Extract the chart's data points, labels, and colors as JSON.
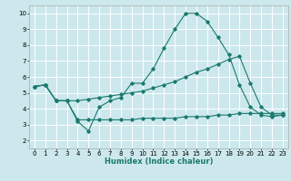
{
  "title": "",
  "xlabel": "Humidex (Indice chaleur)",
  "bg_color": "#cce8ec",
  "grid_color": "#ffffff",
  "line_color": "#1a7a6e",
  "xlim": [
    -0.5,
    23.5
  ],
  "ylim": [
    1.5,
    10.5
  ],
  "xticks": [
    0,
    1,
    2,
    3,
    4,
    5,
    6,
    7,
    8,
    9,
    10,
    11,
    12,
    13,
    14,
    15,
    16,
    17,
    18,
    19,
    20,
    21,
    22,
    23
  ],
  "yticks": [
    2,
    3,
    4,
    5,
    6,
    7,
    8,
    9,
    10
  ],
  "line1_x": [
    0,
    1,
    2,
    3,
    4,
    5,
    6,
    7,
    8,
    9,
    10,
    11,
    12,
    13,
    14,
    15,
    16,
    17,
    18,
    19,
    20,
    21,
    22,
    23
  ],
  "line1_y": [
    5.4,
    5.5,
    4.5,
    4.5,
    3.2,
    2.6,
    4.1,
    4.5,
    4.7,
    5.6,
    5.6,
    6.5,
    7.8,
    9.0,
    10.0,
    10.0,
    9.5,
    8.5,
    7.4,
    5.5,
    4.1,
    3.6,
    3.5,
    3.6
  ],
  "line2_x": [
    0,
    1,
    2,
    3,
    4,
    5,
    6,
    7,
    8,
    9,
    10,
    11,
    12,
    13,
    14,
    15,
    16,
    17,
    18,
    19,
    20,
    21,
    22,
    23
  ],
  "line2_y": [
    5.4,
    5.5,
    4.5,
    4.5,
    3.3,
    3.3,
    3.3,
    3.3,
    3.3,
    3.3,
    3.4,
    3.4,
    3.4,
    3.4,
    3.5,
    3.5,
    3.5,
    3.6,
    3.6,
    3.7,
    3.7,
    3.7,
    3.7,
    3.7
  ],
  "line3_x": [
    0,
    1,
    2,
    3,
    4,
    5,
    6,
    7,
    8,
    9,
    10,
    11,
    12,
    13,
    14,
    15,
    16,
    17,
    18,
    19,
    20,
    21,
    22,
    23
  ],
  "line3_y": [
    5.4,
    5.5,
    4.5,
    4.5,
    4.5,
    4.6,
    4.7,
    4.8,
    4.9,
    5.0,
    5.1,
    5.3,
    5.5,
    5.7,
    6.0,
    6.3,
    6.5,
    6.8,
    7.1,
    7.3,
    5.6,
    4.1,
    3.6,
    3.6
  ],
  "xlabel_fontsize": 6.0,
  "tick_fontsize": 5.0
}
